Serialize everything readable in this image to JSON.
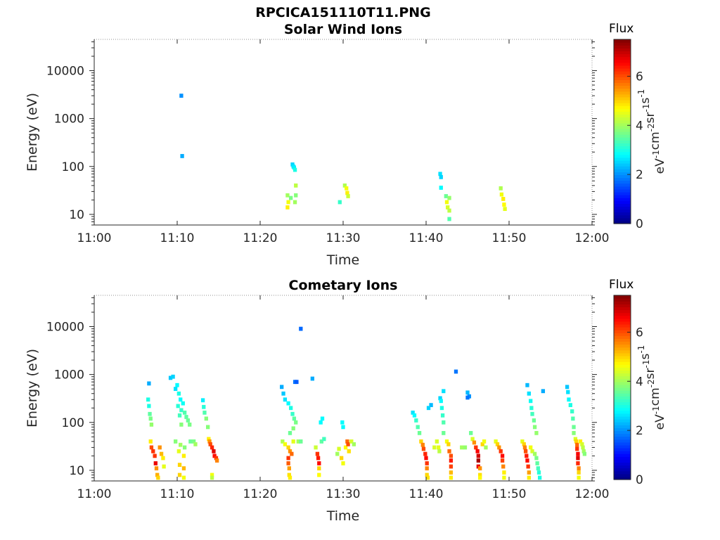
{
  "figure": {
    "title": "RPCICA151110T11.PNG"
  },
  "colorbar": {
    "label": "Flux",
    "unit_base": "eV",
    "unit_parts": [
      "eV",
      "-1",
      "cm",
      "-2",
      "sr",
      "-1",
      "s",
      "-1"
    ],
    "range": [
      0,
      7.5
    ],
    "ticks": [
      "0",
      "2",
      "4",
      "6"
    ],
    "colormap": "jet"
  },
  "axes": {
    "xlabel": "Time",
    "ylabel": "Energy (eV)",
    "x_ticks": [
      "11:00",
      "11:10",
      "11:20",
      "11:30",
      "11:40",
      "11:50",
      "12:00"
    ],
    "x_range_min": [
      0,
      60
    ],
    "y_ticks": [
      "10",
      "100",
      "1000",
      "10000"
    ],
    "y_range": [
      6,
      45000
    ],
    "y_scale": "log"
  },
  "chart_data": [
    {
      "type": "heatmap",
      "title": "Solar Wind Ions",
      "x_unit": "minutes after 11:00",
      "y_unit": "eV",
      "cells": [
        [
          10.5,
          3000,
          2.0
        ],
        [
          10.6,
          165,
          2.2
        ],
        [
          23.3,
          25,
          4.0
        ],
        [
          23.4,
          18,
          4.6
        ],
        [
          23.3,
          14,
          4.8
        ],
        [
          23.7,
          22,
          3.7
        ],
        [
          23.9,
          110,
          2.5
        ],
        [
          24.0,
          100,
          2.6
        ],
        [
          24.1,
          95,
          2.7
        ],
        [
          24.2,
          85,
          3.0
        ],
        [
          24.3,
          40,
          4.2
        ],
        [
          24.3,
          25,
          3.8
        ],
        [
          24.2,
          18,
          4.0
        ],
        [
          29.6,
          18,
          3.2
        ],
        [
          30.2,
          40,
          4.1
        ],
        [
          30.4,
          35,
          4.6
        ],
        [
          30.5,
          28,
          4.8
        ],
        [
          30.6,
          24,
          4.3
        ],
        [
          41.7,
          70,
          2.6
        ],
        [
          41.8,
          60,
          2.5
        ],
        [
          41.8,
          36,
          2.8
        ],
        [
          42.4,
          24,
          3.6
        ],
        [
          42.5,
          18,
          4.6
        ],
        [
          42.6,
          14,
          4.4
        ],
        [
          42.8,
          22,
          3.9
        ],
        [
          42.8,
          12,
          4.2
        ],
        [
          42.8,
          8,
          3.4
        ],
        [
          49.0,
          35,
          4.1
        ],
        [
          49.1,
          26,
          4.6
        ],
        [
          49.3,
          21,
          4.8
        ],
        [
          49.4,
          16,
          4.7
        ],
        [
          49.5,
          13,
          4.5
        ]
      ]
    },
    {
      "type": "heatmap",
      "title": "Cometary Ions",
      "x_unit": "minutes after 11:00",
      "y_unit": "eV",
      "cells": [
        [
          6.6,
          650,
          2.2
        ],
        [
          6.5,
          300,
          3.0
        ],
        [
          6.6,
          220,
          3.0
        ],
        [
          6.7,
          150,
          3.5
        ],
        [
          6.8,
          120,
          3.7
        ],
        [
          6.9,
          90,
          3.9
        ],
        [
          6.8,
          40,
          4.8
        ],
        [
          6.9,
          30,
          6.0
        ],
        [
          7.1,
          25,
          6.2
        ],
        [
          7.3,
          20,
          6.2
        ],
        [
          7.4,
          14,
          6.7
        ],
        [
          7.5,
          11,
          5.5
        ],
        [
          7.6,
          8,
          5.3
        ],
        [
          7.7,
          7,
          5.0
        ],
        [
          7.9,
          30,
          5.5
        ],
        [
          8.1,
          22,
          5.2
        ],
        [
          8.3,
          18,
          4.8
        ],
        [
          8.4,
          12,
          4.5
        ],
        [
          9.2,
          850,
          2.4
        ],
        [
          9.5,
          900,
          2.5
        ],
        [
          10.0,
          600,
          2.8
        ],
        [
          9.8,
          500,
          2.6
        ],
        [
          10.2,
          400,
          3.0
        ],
        [
          10.4,
          300,
          2.8
        ],
        [
          10.7,
          250,
          2.9
        ],
        [
          10.1,
          220,
          3.1
        ],
        [
          10.5,
          180,
          3.2
        ],
        [
          10.9,
          160,
          3.4
        ],
        [
          10.3,
          140,
          3.3
        ],
        [
          11.1,
          130,
          3.5
        ],
        [
          11.3,
          110,
          3.6
        ],
        [
          10.5,
          90,
          3.8
        ],
        [
          11.5,
          90,
          3.7
        ],
        [
          9.8,
          40,
          3.8
        ],
        [
          10.4,
          34,
          4.0
        ],
        [
          10.9,
          30,
          3.8
        ],
        [
          10.2,
          25,
          4.5
        ],
        [
          10.8,
          20,
          4.8
        ],
        [
          10.3,
          13,
          5.0
        ],
        [
          10.8,
          11,
          5.2
        ],
        [
          10.3,
          8,
          5.0
        ],
        [
          10.8,
          7,
          4.6
        ],
        [
          11.6,
          40,
          3.6
        ],
        [
          12.0,
          40,
          3.7
        ],
        [
          12.2,
          35,
          4.0
        ],
        [
          13.1,
          290,
          2.7
        ],
        [
          13.2,
          210,
          3.1
        ],
        [
          13.3,
          160,
          3.4
        ],
        [
          13.5,
          120,
          3.8
        ],
        [
          13.7,
          80,
          3.8
        ],
        [
          13.8,
          45,
          4.8
        ],
        [
          13.9,
          40,
          5.5
        ],
        [
          14.0,
          35,
          6.0
        ],
        [
          14.2,
          30,
          6.3
        ],
        [
          14.4,
          25,
          6.8
        ],
        [
          14.5,
          20,
          6.5
        ],
        [
          14.7,
          18,
          6.2
        ],
        [
          14.8,
          16,
          5.6
        ],
        [
          14.2,
          8,
          4.6
        ],
        [
          14.2,
          7,
          4.2
        ],
        [
          22.6,
          550,
          2.2
        ],
        [
          22.8,
          400,
          2.4
        ],
        [
          23.0,
          300,
          2.6
        ],
        [
          23.4,
          250,
          2.8
        ],
        [
          23.7,
          200,
          3.0
        ],
        [
          23.9,
          150,
          3.2
        ],
        [
          24.1,
          120,
          3.5
        ],
        [
          24.3,
          100,
          3.7
        ],
        [
          24.0,
          75,
          3.8
        ],
        [
          23.6,
          60,
          3.6
        ],
        [
          22.7,
          40,
          4.1
        ],
        [
          23.0,
          35,
          4.6
        ],
        [
          23.4,
          30,
          5.0
        ],
        [
          23.6,
          25,
          5.5
        ],
        [
          23.8,
          22,
          5.8
        ],
        [
          23.4,
          18,
          6.2
        ],
        [
          23.4,
          14,
          5.9
        ],
        [
          23.5,
          11,
          5.4
        ],
        [
          23.5,
          8,
          4.9
        ],
        [
          23.6,
          7,
          4.8
        ],
        [
          24.0,
          40,
          4.5
        ],
        [
          24.6,
          40,
          4.0
        ],
        [
          24.9,
          40,
          3.6
        ],
        [
          24.2,
          700,
          1.8
        ],
        [
          24.4,
          700,
          1.6
        ],
        [
          24.9,
          9000,
          1.7
        ],
        [
          26.3,
          820,
          2.2
        ],
        [
          26.7,
          30,
          4.3
        ],
        [
          26.9,
          22,
          6.2
        ],
        [
          27.0,
          18,
          6.4
        ],
        [
          27.1,
          14,
          6.5
        ],
        [
          27.1,
          11,
          5.0
        ],
        [
          27.1,
          8,
          4.7
        ],
        [
          27.4,
          40,
          3.5
        ],
        [
          27.7,
          45,
          3.3
        ],
        [
          27.3,
          100,
          2.8
        ],
        [
          27.5,
          120,
          2.8
        ],
        [
          29.3,
          22,
          4.0
        ],
        [
          29.5,
          28,
          4.4
        ],
        [
          29.8,
          18,
          5.0
        ],
        [
          30.0,
          14,
          4.6
        ],
        [
          30.3,
          30,
          4.7
        ],
        [
          30.5,
          40,
          5.8
        ],
        [
          30.6,
          35,
          6.0
        ],
        [
          30.7,
          25,
          4.9
        ],
        [
          31.0,
          40,
          4.4
        ],
        [
          31.3,
          35,
          4.0
        ],
        [
          29.9,
          100,
          2.8
        ],
        [
          30.0,
          80,
          2.8
        ],
        [
          38.4,
          160,
          2.6
        ],
        [
          38.6,
          140,
          2.8
        ],
        [
          38.8,
          110,
          3.2
        ],
        [
          39.0,
          80,
          3.4
        ],
        [
          39.2,
          60,
          3.6
        ],
        [
          39.4,
          40,
          5.0
        ],
        [
          39.6,
          34,
          5.6
        ],
        [
          39.7,
          28,
          6.0
        ],
        [
          39.9,
          22,
          6.3
        ],
        [
          40.0,
          18,
          6.5
        ],
        [
          40.1,
          14,
          6.2
        ],
        [
          40.1,
          11,
          5.6
        ],
        [
          40.1,
          8,
          5.0
        ],
        [
          40.2,
          7,
          4.9
        ],
        [
          40.6,
          230,
          2.3
        ],
        [
          40.3,
          200,
          2.5
        ],
        [
          41.0,
          30,
          4.4
        ],
        [
          41.3,
          40,
          4.4
        ],
        [
          41.5,
          30,
          4.5
        ],
        [
          41.6,
          25,
          4.2
        ],
        [
          41.7,
          320,
          2.5
        ],
        [
          41.8,
          280,
          2.8
        ],
        [
          41.9,
          200,
          3.0
        ],
        [
          42.0,
          140,
          3.2
        ],
        [
          42.1,
          100,
          3.4
        ],
        [
          42.1,
          60,
          3.6
        ],
        [
          42.1,
          450,
          2.6
        ],
        [
          42.5,
          40,
          4.6
        ],
        [
          42.7,
          35,
          5.0
        ],
        [
          42.8,
          25,
          5.8
        ],
        [
          43.0,
          20,
          6.0
        ],
        [
          43.0,
          16,
          6.4
        ],
        [
          43.0,
          12,
          6.1
        ],
        [
          43.0,
          9,
          5.2
        ],
        [
          43.0,
          7,
          4.8
        ],
        [
          43.6,
          1150,
          1.8
        ],
        [
          44.3,
          30,
          4.0
        ],
        [
          44.7,
          30,
          3.9
        ],
        [
          45.0,
          420,
          2.3
        ],
        [
          45.2,
          350,
          2.0
        ],
        [
          45.0,
          330,
          1.8
        ],
        [
          45.4,
          60,
          3.6
        ],
        [
          45.6,
          45,
          4.4
        ],
        [
          45.8,
          38,
          5.5
        ],
        [
          46.0,
          30,
          6.2
        ],
        [
          46.2,
          25,
          6.6
        ],
        [
          46.3,
          20,
          6.9
        ],
        [
          46.3,
          16,
          7.2
        ],
        [
          46.3,
          12,
          6.7
        ],
        [
          46.5,
          11,
          5.5
        ],
        [
          46.5,
          8,
          4.9
        ],
        [
          46.5,
          7,
          4.7
        ],
        [
          46.8,
          35,
          5.0
        ],
        [
          47.0,
          40,
          4.6
        ],
        [
          47.2,
          30,
          4.0
        ],
        [
          48.4,
          40,
          4.5
        ],
        [
          48.6,
          35,
          5.0
        ],
        [
          48.8,
          30,
          5.5
        ],
        [
          49.0,
          25,
          6.2
        ],
        [
          49.2,
          20,
          6.5
        ],
        [
          49.2,
          16,
          6.1
        ],
        [
          49.3,
          12,
          5.6
        ],
        [
          49.4,
          9,
          4.8
        ],
        [
          49.4,
          7,
          4.6
        ],
        [
          51.6,
          40,
          4.5
        ],
        [
          51.8,
          35,
          5.0
        ],
        [
          51.9,
          30,
          5.6
        ],
        [
          52.0,
          25,
          6.0
        ],
        [
          52.1,
          20,
          6.4
        ],
        [
          52.2,
          16,
          6.5
        ],
        [
          52.3,
          12,
          6.2
        ],
        [
          52.4,
          9,
          5.4
        ],
        [
          52.4,
          7,
          4.8
        ],
        [
          52.6,
          30,
          4.6
        ],
        [
          52.8,
          25,
          4.4
        ],
        [
          53.1,
          22,
          4.0
        ],
        [
          53.3,
          18,
          3.7
        ],
        [
          53.4,
          14,
          3.5
        ],
        [
          53.5,
          11,
          3.3
        ],
        [
          53.6,
          9,
          3.1
        ],
        [
          53.7,
          7,
          3.0
        ],
        [
          52.2,
          600,
          2.3
        ],
        [
          52.4,
          400,
          2.6
        ],
        [
          52.6,
          280,
          2.9
        ],
        [
          52.7,
          200,
          3.1
        ],
        [
          52.8,
          150,
          3.3
        ],
        [
          53.0,
          110,
          3.6
        ],
        [
          53.1,
          80,
          3.8
        ],
        [
          53.3,
          60,
          3.9
        ],
        [
          54.1,
          450,
          2.2
        ],
        [
          57.0,
          550,
          2.4
        ],
        [
          57.1,
          430,
          2.6
        ],
        [
          57.2,
          300,
          2.8
        ],
        [
          57.4,
          230,
          3.0
        ],
        [
          57.6,
          170,
          3.2
        ],
        [
          57.7,
          120,
          3.4
        ],
        [
          57.8,
          80,
          3.6
        ],
        [
          57.8,
          60,
          3.8
        ],
        [
          58.0,
          45,
          4.4
        ],
        [
          58.1,
          40,
          5.0
        ],
        [
          58.2,
          34,
          5.8
        ],
        [
          58.2,
          28,
          6.2
        ],
        [
          58.3,
          22,
          6.6
        ],
        [
          58.3,
          18,
          6.8
        ],
        [
          58.3,
          14,
          6.3
        ],
        [
          58.4,
          11,
          5.6
        ],
        [
          58.4,
          9,
          5.0
        ],
        [
          58.4,
          7,
          4.6
        ],
        [
          58.6,
          40,
          4.8
        ],
        [
          58.8,
          35,
          4.4
        ],
        [
          58.9,
          30,
          4.2
        ],
        [
          59.0,
          25,
          4.0
        ],
        [
          59.1,
          22,
          3.8
        ]
      ]
    }
  ]
}
